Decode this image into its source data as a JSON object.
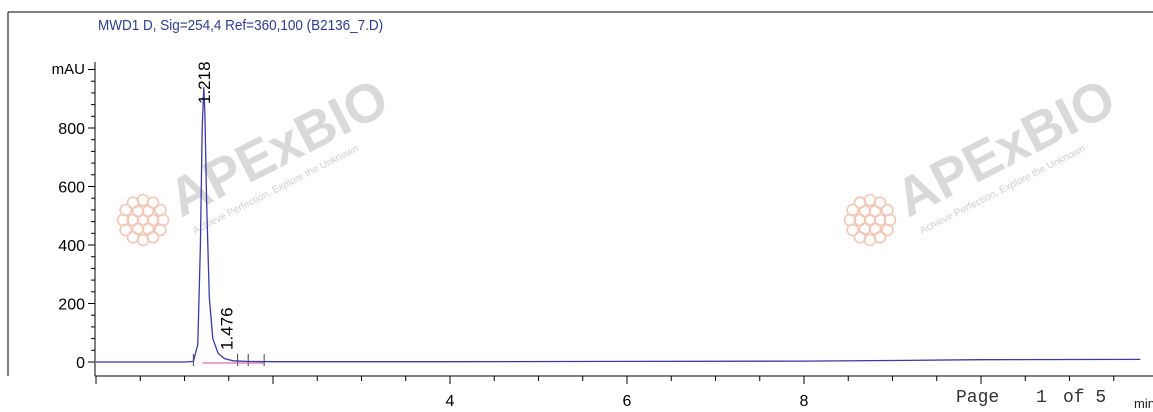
{
  "chart_data": {
    "type": "line",
    "title": "MWD1 D, Sig=254,4 Ref=360,100 (B2136_7.D)",
    "ylabel": "mAU",
    "xlabel": "min",
    "xlim": [
      0,
      11.8
    ],
    "ylim": [
      0,
      1000
    ],
    "y_ticks": [
      0,
      200,
      400,
      600,
      800
    ],
    "x_ticks": [
      4,
      6,
      8
    ],
    "series": [
      {
        "color": "#3a3aa8",
        "x": [
          0,
          1.0,
          1.1,
          1.15,
          1.18,
          1.2,
          1.218,
          1.23,
          1.25,
          1.28,
          1.32,
          1.38,
          1.45,
          1.476,
          1.55,
          1.7,
          2.0,
          4.0,
          6.0,
          8.0,
          9.0,
          10.0,
          11.8
        ],
        "values": [
          0,
          0,
          2,
          60,
          400,
          800,
          940,
          850,
          550,
          220,
          80,
          30,
          12,
          10,
          4,
          2,
          1,
          1,
          2,
          3,
          5,
          8,
          9
        ]
      }
    ],
    "peak_labels": [
      {
        "x": 1.218,
        "text": "1.218"
      },
      {
        "x": 1.476,
        "text": "1.476"
      }
    ]
  },
  "page": {
    "label": "Page",
    "number": "1",
    "of": "of 5"
  },
  "watermark": {
    "brand": "APExBIO",
    "tagline": "Achieve Perfection, Explore the Unknown"
  },
  "colors": {
    "trace": "#3a3aa8",
    "baseline": "#d04fa0",
    "title": "#2c3c8c",
    "watermark": "#d9d9d9"
  }
}
